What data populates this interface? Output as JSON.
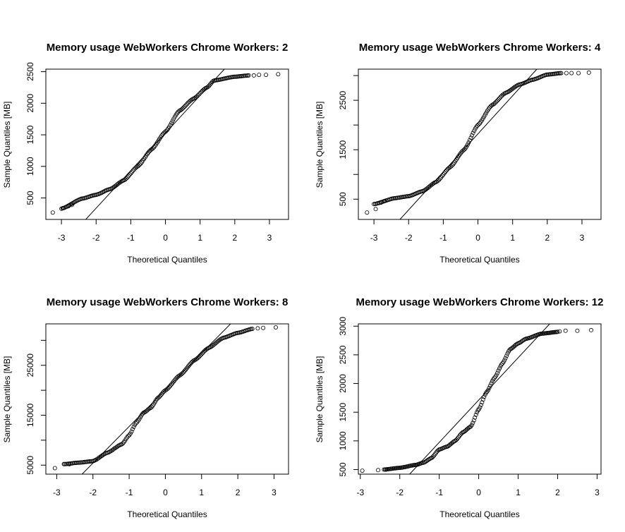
{
  "chart_data": [
    {
      "type": "scatter",
      "subtype": "qq-plot",
      "title": "Memory usage WebWorkers Chrome Workers:  2",
      "xlabel": "Theoretical Quantiles",
      "ylabel": "Sample Quantiles [MB]",
      "xlim": [
        -3.45,
        3.55
      ],
      "ylim": [
        160,
        2540
      ],
      "x_ticks": [
        {
          "v": -3,
          "label": "-3"
        },
        {
          "v": -2,
          "label": "-2"
        },
        {
          "v": -1,
          "label": "-1"
        },
        {
          "v": 0,
          "label": "0"
        },
        {
          "v": 1,
          "label": "1"
        },
        {
          "v": 2,
          "label": "2"
        },
        {
          "v": 3,
          "label": "3"
        }
      ],
      "y_ticks": [
        {
          "v": 500,
          "label": "500"
        },
        {
          "v": 1000,
          "label": "1000"
        },
        {
          "v": 1500,
          "label": "1500"
        },
        {
          "v": 2000,
          "label": "2000"
        },
        {
          "v": 2500,
          "label": "2500"
        }
      ],
      "y_minor_ticks": [],
      "qq_line": {
        "x1": -2.3,
        "y1": 160,
        "x2": 1.7,
        "y2": 2540
      },
      "curve": {
        "x": [
          -3.0,
          -2.4,
          -2.0,
          -1.6,
          -1.2,
          -0.8,
          -0.4,
          0.0,
          0.4,
          0.8,
          1.2,
          1.4,
          2.0,
          2.4
        ],
        "y": [
          330,
          490,
          550,
          640,
          780,
          1000,
          1270,
          1550,
          1880,
          2070,
          2250,
          2360,
          2420,
          2440
        ]
      },
      "extreme_points": [
        {
          "x": -3.25,
          "y": 270
        },
        {
          "x": -2.95,
          "y": 340
        },
        {
          "x": -2.8,
          "y": 370
        },
        {
          "x": -2.7,
          "y": 390
        },
        {
          "x": 2.55,
          "y": 2440
        },
        {
          "x": 2.7,
          "y": 2450
        },
        {
          "x": 2.9,
          "y": 2450
        },
        {
          "x": 3.25,
          "y": 2460
        }
      ]
    },
    {
      "type": "scatter",
      "subtype": "qq-plot",
      "title": "Memory usage WebWorkers Chrome Workers:  4",
      "xlabel": "Theoretical Quantiles",
      "ylabel": "Sample Quantiles [MB]",
      "xlim": [
        -3.45,
        3.55
      ],
      "ylim": [
        90,
        3130
      ],
      "x_ticks": [
        {
          "v": -3,
          "label": "-3"
        },
        {
          "v": -2,
          "label": "-2"
        },
        {
          "v": -1,
          "label": "-1"
        },
        {
          "v": 0,
          "label": "0"
        },
        {
          "v": 1,
          "label": "1"
        },
        {
          "v": 2,
          "label": "2"
        },
        {
          "v": 3,
          "label": "3"
        }
      ],
      "y_ticks": [
        {
          "v": 500,
          "label": "500"
        },
        {
          "v": 1500,
          "label": "1500"
        },
        {
          "v": 2500,
          "label": "2500"
        }
      ],
      "y_minor_ticks": [
        1000,
        2000,
        3000
      ],
      "qq_line": {
        "x1": -2.25,
        "y1": 90,
        "x2": 1.7,
        "y2": 3130
      },
      "curve": {
        "x": [
          -3.0,
          -2.4,
          -2.0,
          -1.6,
          -1.2,
          -0.8,
          -0.4,
          0.0,
          0.4,
          0.8,
          1.2,
          1.6,
          2.0,
          2.4
        ],
        "y": [
          400,
          520,
          560,
          660,
          850,
          1150,
          1500,
          2000,
          2400,
          2650,
          2820,
          2920,
          3020,
          3050
        ]
      },
      "extreme_points": [
        {
          "x": -3.2,
          "y": 230
        },
        {
          "x": -2.95,
          "y": 300
        },
        {
          "x": -2.8,
          "y": 430
        },
        {
          "x": -2.7,
          "y": 460
        },
        {
          "x": 2.55,
          "y": 3050
        },
        {
          "x": 2.7,
          "y": 3050
        },
        {
          "x": 2.9,
          "y": 3050
        },
        {
          "x": 3.2,
          "y": 3060
        }
      ]
    },
    {
      "type": "scatter",
      "subtype": "qq-plot",
      "title": "Memory usage WebWorkers Chrome Workers:  8",
      "xlabel": "Theoretical Quantiles",
      "ylabel": "Sample Quantiles [MB]",
      "xlim": [
        -3.3,
        3.4
      ],
      "ylim": [
        3200,
        33300
      ],
      "x_ticks": [
        {
          "v": -3,
          "label": "-3"
        },
        {
          "v": -2,
          "label": "-2"
        },
        {
          "v": -1,
          "label": "-1"
        },
        {
          "v": 0,
          "label": "0"
        },
        {
          "v": 1,
          "label": "1"
        },
        {
          "v": 2,
          "label": "2"
        },
        {
          "v": 3,
          "label": "3"
        }
      ],
      "y_ticks": [
        {
          "v": 5000,
          "label": "5000"
        },
        {
          "v": 15000,
          "label": "15000"
        },
        {
          "v": 25000,
          "label": "25000"
        }
      ],
      "y_minor_ticks": [
        10000,
        20000,
        30000
      ],
      "qq_line": {
        "x1": -2.3,
        "y1": 3200,
        "x2": 1.8,
        "y2": 33300
      },
      "curve": {
        "x": [
          -2.8,
          -2.4,
          -2.0,
          -1.6,
          -1.2,
          -1.0,
          -0.8,
          -0.6,
          -0.4,
          -0.2,
          0.0,
          0.4,
          0.8,
          1.2,
          1.6,
          2.0,
          2.4
        ],
        "y": [
          5200,
          5500,
          5800,
          7500,
          9200,
          11000,
          13500,
          15500,
          16500,
          18500,
          20000,
          23000,
          26000,
          28500,
          30500,
          31500,
          32300
        ]
      },
      "extreme_points": [
        {
          "x": -3.05,
          "y": 4400
        },
        {
          "x": -2.8,
          "y": 5200
        },
        {
          "x": -2.65,
          "y": 5200
        },
        {
          "x": 2.55,
          "y": 32400
        },
        {
          "x": 2.7,
          "y": 32500
        },
        {
          "x": 3.05,
          "y": 32600
        }
      ]
    },
    {
      "type": "scatter",
      "subtype": "qq-plot",
      "title": "Memory usage WebWorkers Chrome Workers:  12",
      "xlabel": "Theoretical Quantiles",
      "ylabel": "Sample Quantiles [MB]",
      "xlim": [
        -3.05,
        3.1
      ],
      "ylim": [
        420,
        3040
      ],
      "x_ticks": [
        {
          "v": -3,
          "label": "-3"
        },
        {
          "v": -2,
          "label": "-2"
        },
        {
          "v": -1,
          "label": "-1"
        },
        {
          "v": 0,
          "label": "0"
        },
        {
          "v": 1,
          "label": "1"
        },
        {
          "v": 2,
          "label": "2"
        },
        {
          "v": 3,
          "label": "3"
        }
      ],
      "y_ticks": [
        {
          "v": 500,
          "label": "500"
        },
        {
          "v": 1000,
          "label": "1000"
        },
        {
          "v": 1500,
          "label": "1500"
        },
        {
          "v": 2000,
          "label": "2000"
        },
        {
          "v": 2500,
          "label": "2500"
        },
        {
          "v": 3000,
          "label": "3000"
        }
      ],
      "y_minor_ticks": [],
      "qq_line": {
        "x1": -1.75,
        "y1": 420,
        "x2": 1.8,
        "y2": 3040
      },
      "curve": {
        "x": [
          -2.4,
          -2.0,
          -1.6,
          -1.4,
          -1.2,
          -1.0,
          -0.8,
          -0.6,
          -0.4,
          -0.2,
          0.0,
          0.2,
          0.4,
          0.6,
          0.8,
          1.0,
          1.2,
          1.6,
          2.0
        ],
        "y": [
          500,
          530,
          580,
          620,
          700,
          850,
          900,
          1000,
          1150,
          1250,
          1550,
          1850,
          2100,
          2350,
          2600,
          2700,
          2780,
          2870,
          2900
        ]
      },
      "extreme_points": [
        {
          "x": -2.95,
          "y": 480
        },
        {
          "x": -2.55,
          "y": 490
        },
        {
          "x": -2.35,
          "y": 500
        },
        {
          "x": 2.05,
          "y": 2910
        },
        {
          "x": 2.2,
          "y": 2920
        },
        {
          "x": 2.5,
          "y": 2920
        },
        {
          "x": 2.85,
          "y": 2930
        }
      ]
    }
  ]
}
